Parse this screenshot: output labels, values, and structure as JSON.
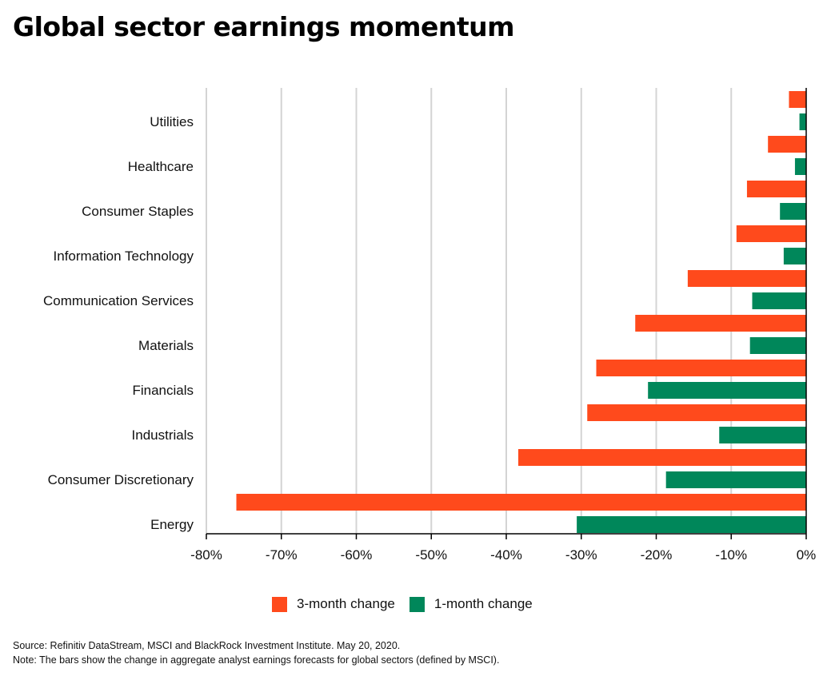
{
  "title": "Global sector earnings momentum",
  "legend": {
    "three_month": "3-month change",
    "one_month": "1-month change"
  },
  "notes": {
    "source": "Source: Refinitiv DataStream, MSCI and BlackRock Investment Institute. May 20, 2020.",
    "note": "Note: The bars show the change in aggregate analyst earnings forecasts for global sectors (defined by MSCI)."
  },
  "colors": {
    "three_month": "#ff4a1c",
    "one_month": "#00875a",
    "grid": "#d4d4d4"
  },
  "chart_data": {
    "type": "bar",
    "orientation": "horizontal",
    "categories": [
      "Utilities",
      "Healthcare",
      "Consumer Staples",
      "Information Technology",
      "Communication Services",
      "Materials",
      "Financials",
      "Industrials",
      "Consumer Discretionary",
      "Energy"
    ],
    "series": [
      {
        "name": "3-month change",
        "color": "#ff4a1c",
        "values": [
          -2.3,
          -5.1,
          -7.9,
          -9.3,
          -15.8,
          -22.8,
          -28.0,
          -29.2,
          -38.4,
          -76.0
        ]
      },
      {
        "name": "1-month change",
        "color": "#00875a",
        "values": [
          -0.9,
          -1.5,
          -3.5,
          -3.0,
          -7.2,
          -7.5,
          -21.1,
          -11.6,
          -18.7,
          -30.6
        ]
      }
    ],
    "xlim": [
      -80,
      0
    ],
    "xticks": [
      -80,
      -70,
      -60,
      -50,
      -40,
      -30,
      -20,
      -10,
      0
    ],
    "tick_labels": [
      "-80%",
      "-70%",
      "-60%",
      "-50%",
      "-40%",
      "-30%",
      "-20%",
      "-10%",
      "0%"
    ],
    "grid": "vertical",
    "legend_position": "bottom"
  }
}
